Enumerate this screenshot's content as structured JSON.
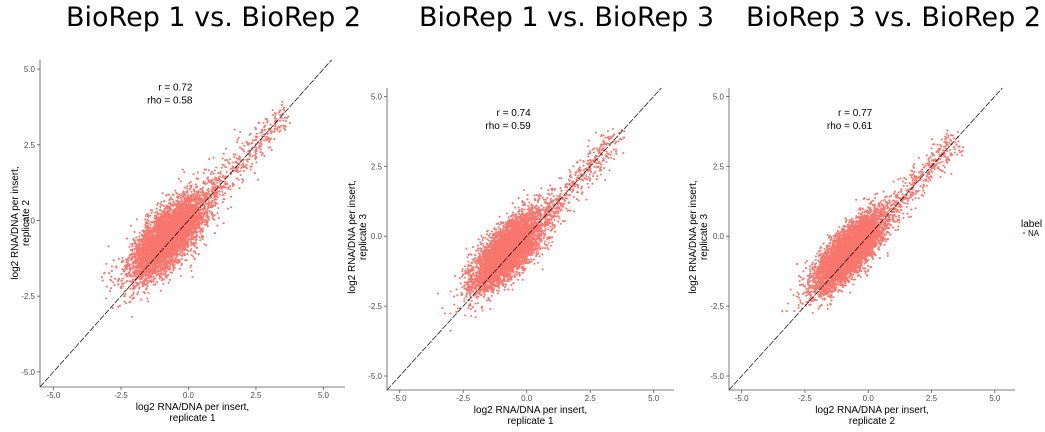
{
  "chart_data": [
    {
      "type": "scatter",
      "title": "BioRep 1 vs. BioRep 2",
      "xlabel": [
        "log2 RNA/DNA per insert,",
        "replicate 1"
      ],
      "ylabel": [
        "log2 RNA/DNA per insert,",
        "replicate 2"
      ],
      "xlim": [
        -5.5,
        5.8
      ],
      "ylim": [
        -5.5,
        5.3
      ],
      "xticks": [
        -5.0,
        -2.5,
        0.0,
        2.5,
        5.0
      ],
      "yticks": [
        -5.0,
        -2.5,
        0.0,
        2.5,
        5.0
      ],
      "xtick_labels": [
        "-5.0",
        "-2.5",
        "0.0",
        "2.5",
        "5.0"
      ],
      "ytick_labels": [
        "-5.0",
        "-2.5",
        "0.0",
        "2.5",
        "5.0"
      ],
      "annotations": [
        "r = 0.72",
        "rho = 0.58"
      ],
      "r": 0.72,
      "rho": 0.58,
      "reference_line": "y = x",
      "point_color": "#F8766D",
      "grid": false
    },
    {
      "type": "scatter",
      "title": "BioRep 1 vs. BioRep 3",
      "xlabel": [
        "log2 RNA/DNA per insert,",
        "replicate 1"
      ],
      "ylabel": [
        "log2 RNA/DNA per insert,",
        "replicate 3"
      ],
      "xlim": [
        -5.5,
        5.8
      ],
      "ylim": [
        -5.5,
        5.3
      ],
      "xticks": [
        -5.0,
        -2.5,
        0.0,
        2.5,
        5.0
      ],
      "yticks": [
        -5.0,
        -2.5,
        0.0,
        2.5,
        5.0
      ],
      "xtick_labels": [
        "-5.0",
        "-2.5",
        "0.0",
        "2.5",
        "5.0"
      ],
      "ytick_labels": [
        "-5.0",
        "-2.5",
        "0.0",
        "2.5",
        "5.0"
      ],
      "annotations": [
        "r = 0.74",
        "rho = 0.59"
      ],
      "r": 0.74,
      "rho": 0.59,
      "reference_line": "y = x",
      "point_color": "#F8766D",
      "grid": false
    },
    {
      "type": "scatter",
      "title": "BioRep 3 vs. BioRep 2",
      "xlabel": [
        "log2 RNA/DNA per insert,",
        "replicate 2"
      ],
      "ylabel": [
        "log2 RNA/DNA per insert,",
        "replicate 3"
      ],
      "xlim": [
        -5.5,
        5.8
      ],
      "ylim": [
        -5.5,
        5.3
      ],
      "xticks": [
        -5.0,
        -2.5,
        0.0,
        2.5,
        5.0
      ],
      "yticks": [
        -5.0,
        -2.5,
        0.0,
        2.5,
        5.0
      ],
      "xtick_labels": [
        "-5.0",
        "-2.5",
        "0.0",
        "2.5",
        "5.0"
      ],
      "ytick_labels": [
        "-5.0",
        "-2.5",
        "0.0",
        "2.5",
        "5.0"
      ],
      "annotations": [
        "r = 0.77",
        "rho = 0.61"
      ],
      "r": 0.77,
      "rho": 0.61,
      "reference_line": "y = x",
      "point_color": "#F8766D",
      "grid": false
    }
  ],
  "legend": {
    "title": "label",
    "entries": [
      {
        "name": "NA",
        "color": "#F8766D"
      }
    ],
    "placement": "right"
  }
}
